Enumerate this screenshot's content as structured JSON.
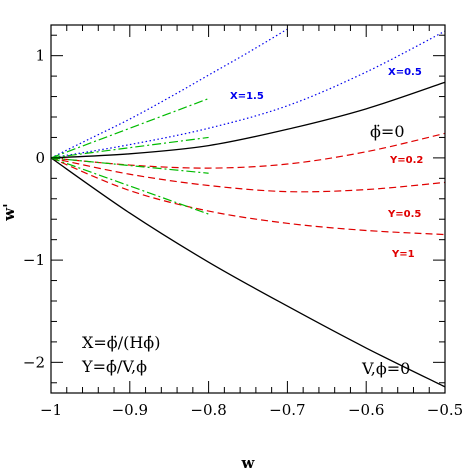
{
  "chart_data": {
    "type": "line",
    "xlabel": "w",
    "ylabel": "w'",
    "xlim": [
      -1.0,
      -0.5
    ],
    "ylim": [
      -2.3,
      1.3
    ],
    "xticks": [
      -1,
      -0.9,
      -0.8,
      -0.7,
      -0.6,
      -0.5
    ],
    "xtick_labels": [
      "−1",
      "−0.9",
      "−0.8",
      "−0.7",
      "−0.6",
      "−0.5"
    ],
    "yticks": [
      -2,
      -1,
      0,
      1
    ],
    "ytick_labels": [
      "−2",
      "−1",
      "0",
      "1"
    ],
    "grid": false,
    "annotations": [
      "X=ϕ̈/(Hϕ̇)",
      "Y=ϕ̇/V,ϕ"
    ],
    "series": [
      {
        "name": "X=1.5",
        "color": "#0000ee",
        "style": "dotted",
        "x": [
          -1.0,
          -0.95,
          -0.9,
          -0.85,
          -0.8,
          -0.75,
          -0.7
        ],
        "y": [
          0.0,
          0.19,
          0.38,
          0.59,
          0.81,
          1.03,
          1.26
        ]
      },
      {
        "name": "X=0.5",
        "color": "#0000ee",
        "style": "dotted",
        "x": [
          -1.0,
          -0.9,
          -0.8,
          -0.7,
          -0.6,
          -0.5
        ],
        "y": [
          0.0,
          0.13,
          0.29,
          0.51,
          0.84,
          1.24
        ]
      },
      {
        "name": "ϕ̈=0",
        "color": "#000000",
        "style": "solid",
        "x": [
          -1.0,
          -0.9,
          -0.8,
          -0.7,
          -0.6,
          -0.5
        ],
        "y": [
          0.0,
          0.04,
          0.12,
          0.28,
          0.48,
          0.74
        ]
      },
      {
        "name": "Y=0.2",
        "color": "#e00000",
        "style": "dashed",
        "x": [
          -1.0,
          -0.9,
          -0.8,
          -0.7,
          -0.6,
          -0.5
        ],
        "y": [
          0.0,
          -0.07,
          -0.1,
          -0.06,
          0.06,
          0.24
        ]
      },
      {
        "name": "Y=0.5",
        "color": "#e00000",
        "style": "dashed",
        "x": [
          -1.0,
          -0.9,
          -0.8,
          -0.7,
          -0.6,
          -0.5
        ],
        "y": [
          0.0,
          -0.16,
          -0.27,
          -0.33,
          -0.31,
          -0.24
        ]
      },
      {
        "name": "Y=1",
        "color": "#e00000",
        "style": "dashed",
        "x": [
          -1.0,
          -0.9,
          -0.8,
          -0.7,
          -0.6,
          -0.5
        ],
        "y": [
          0.0,
          -0.32,
          -0.52,
          -0.64,
          -0.71,
          -0.75
        ]
      },
      {
        "name": "V,ϕ=0",
        "color": "#000000",
        "style": "solid",
        "x": [
          -1.0,
          -0.9,
          -0.8,
          -0.7,
          -0.6,
          -0.5
        ],
        "y": [
          0.0,
          -0.54,
          -1.02,
          -1.45,
          -1.86,
          -2.24
        ]
      },
      {
        "name": "",
        "color": "#00bb00",
        "style": "dashdot",
        "x": [
          -1.0,
          -0.8
        ],
        "y": [
          0.0,
          0.58
        ]
      },
      {
        "name": "",
        "color": "#00bb00",
        "style": "dashdot",
        "x": [
          -1.0,
          -0.8
        ],
        "y": [
          0.0,
          0.2
        ]
      },
      {
        "name": "",
        "color": "#00bb00",
        "style": "dashdot",
        "x": [
          -1.0,
          -0.8
        ],
        "y": [
          0.0,
          -0.15
        ]
      },
      {
        "name": "",
        "color": "#00bb00",
        "style": "dashdot",
        "x": [
          -1.0,
          -0.8
        ],
        "y": [
          0.0,
          -0.55
        ]
      }
    ]
  }
}
